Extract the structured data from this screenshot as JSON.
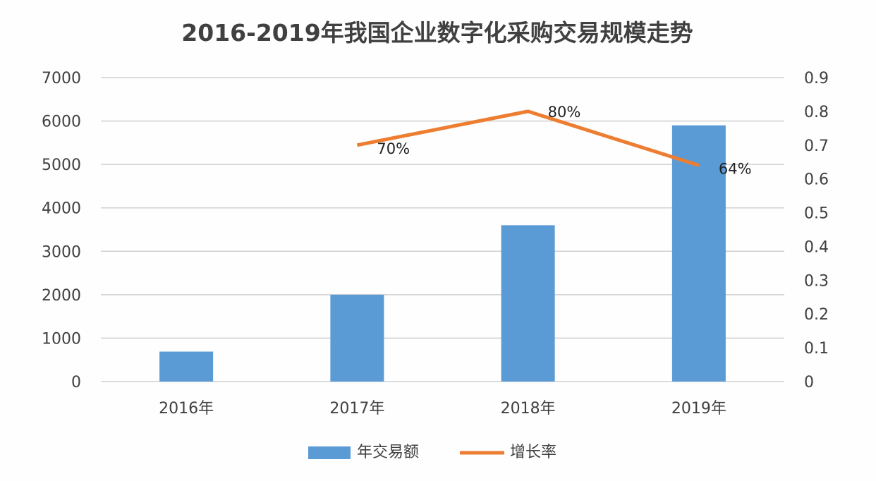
{
  "chart_data": {
    "type": "bar+line",
    "title": "2016-2019年我国企业数字化采购交易规模走势",
    "categories": [
      "2016年",
      "2017年",
      "2018年",
      "2019年"
    ],
    "series": [
      {
        "name": "年交易额",
        "type": "bar",
        "axis": "left",
        "color": "#5b9bd5",
        "values": [
          690,
          2000,
          3600,
          5900
        ]
      },
      {
        "name": "增长率",
        "type": "line",
        "axis": "right",
        "color": "#ed7d31",
        "values": [
          null,
          0.7,
          0.8,
          0.64
        ],
        "labels": [
          null,
          "70%",
          "80%",
          "64%"
        ]
      }
    ],
    "y_left": {
      "range": [
        0,
        7000
      ],
      "ticks": [
        "0",
        "1000",
        "2000",
        "3000",
        "4000",
        "5000",
        "6000",
        "7000"
      ]
    },
    "y_right": {
      "range": [
        0,
        0.9
      ],
      "ticks": [
        "0",
        "0.1",
        "0.2",
        "0.3",
        "0.4",
        "0.5",
        "0.6",
        "0.7",
        "0.8",
        "0.9"
      ]
    },
    "grid": true,
    "legend": "bottom"
  }
}
